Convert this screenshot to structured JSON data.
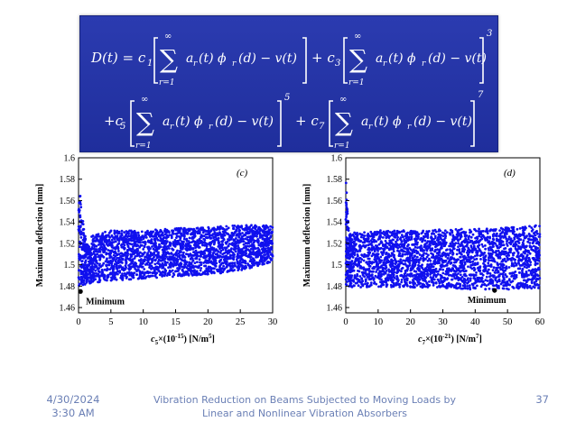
{
  "slide": {
    "equation": {
      "line1": {
        "lhs": "D(t) = c",
        "sub1": "1",
        "plus3": "+ c",
        "sub3": "3",
        "exp3": "3"
      },
      "line2": {
        "plus5": "+c",
        "sub5": "5",
        "exp5": "5",
        "plus7": "+ c",
        "sub7": "7",
        "exp7": "7"
      },
      "sum_upper": "∞",
      "sum_lower": "r=1",
      "term": "a",
      "term_sub": "r",
      "term_mid": "(t) ϕ",
      "phi_sub": "r",
      "term_end": "(d) − v(t)"
    },
    "footer": {
      "date_line1": "4/30/2024",
      "date_line2": "3:30 AM",
      "title_line1": "Vibration Reduction on Beams Subjected to Moving Loads by",
      "title_line2": "Linear and Nonlinear Vibration Absorbers",
      "page": "37"
    }
  },
  "chart_data": [
    {
      "type": "scatter",
      "panel_label": "(c)",
      "ylabel": "Maximum deflection [mm]",
      "xlabel_main": "c",
      "xlabel_sub": "5",
      "xlabel_rest": "×(10",
      "xlabel_exp": "-15",
      "xlabel_unit": ") [N/m",
      "xlabel_unit_exp": "5",
      "xlabel_close": "]",
      "xlim": [
        0,
        30
      ],
      "ylim": [
        1.455,
        1.6
      ],
      "xticks": [
        0,
        5,
        10,
        15,
        20,
        25,
        30
      ],
      "yticks": [
        1.46,
        1.48,
        1.5,
        1.52,
        1.54,
        1.56,
        1.58,
        1.6
      ],
      "ytick_labels": [
        "1.46",
        "1.48",
        "1.5",
        "1.52",
        "1.54",
        "1.56",
        "1.58",
        "1.6"
      ],
      "color": "#1010ee",
      "band_spike": {
        "x": [
          0,
          0.3,
          0.7,
          1.2,
          2.0
        ],
        "y": [
          1.595,
          1.565,
          1.54,
          1.52,
          1.515
        ]
      },
      "band_upper": {
        "x": [
          2,
          5,
          10,
          15,
          20,
          25,
          30
        ],
        "y": [
          1.528,
          1.532,
          1.532,
          1.534,
          1.535,
          1.537,
          1.537
        ]
      },
      "band_lower": {
        "x": [
          0,
          2,
          5,
          10,
          15,
          20,
          25,
          30
        ],
        "y": [
          1.48,
          1.483,
          1.485,
          1.487,
          1.489,
          1.491,
          1.494,
          1.503
        ]
      },
      "minimum_point": {
        "x": 0.3,
        "y": 1.475
      },
      "minimum_label": "Minimum"
    },
    {
      "type": "scatter",
      "panel_label": "(d)",
      "ylabel": "Maximum deflection [mm]",
      "xlabel_main": "c",
      "xlabel_sub": "7",
      "xlabel_rest": "×(10",
      "xlabel_exp": "-21",
      "xlabel_unit": ") [N/m",
      "xlabel_unit_exp": "7",
      "xlabel_close": "]",
      "xlim": [
        0,
        60
      ],
      "ylim": [
        1.455,
        1.6
      ],
      "xticks": [
        0,
        10,
        20,
        30,
        40,
        50,
        60
      ],
      "yticks": [
        1.46,
        1.48,
        1.5,
        1.52,
        1.54,
        1.56,
        1.58,
        1.6
      ],
      "ytick_labels": [
        "1.46",
        "1.48",
        "1.5",
        "1.52",
        "1.54",
        "1.56",
        "1.58",
        "1.6"
      ],
      "color": "#1010ee",
      "band_spike": {
        "x": [
          0,
          0.3,
          0.7,
          1.2,
          2.0
        ],
        "y": [
          1.585,
          1.565,
          1.545,
          1.53,
          1.528
        ]
      },
      "band_upper": {
        "x": [
          2,
          10,
          20,
          30,
          40,
          50,
          60
        ],
        "y": [
          1.53,
          1.532,
          1.532,
          1.533,
          1.534,
          1.535,
          1.537
        ]
      },
      "band_lower": {
        "x": [
          0,
          10,
          20,
          30,
          40,
          50,
          60
        ],
        "y": [
          1.479,
          1.479,
          1.479,
          1.478,
          1.477,
          1.477,
          1.478
        ]
      },
      "minimum_point": {
        "x": 46,
        "y": 1.476
      },
      "minimum_label": "Minimum"
    }
  ]
}
